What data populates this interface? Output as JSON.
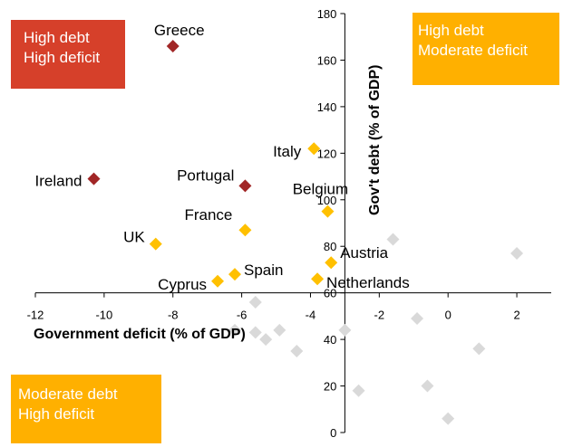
{
  "chart_data": {
    "type": "scatter",
    "xlabel": "Government deficit (% of GDP)",
    "ylabel": "Gov't debt (% of GDP)",
    "xlim": [
      -12,
      3
    ],
    "ylim": [
      0,
      180
    ],
    "x_ticks": [
      -12,
      -10,
      -8,
      -6,
      -4,
      -2,
      0,
      2
    ],
    "y_ticks": [
      0,
      20,
      40,
      60,
      80,
      100,
      120,
      140,
      160,
      180
    ],
    "x_axis_crosses_y_at": 60,
    "y_axis_crosses_x_at": -3,
    "grid": false,
    "colors": {
      "high_debt_high_deficit": "#A12626",
      "high_debt_moderate_deficit": "#FFC000",
      "other": "#D9D9D9"
    },
    "labeled_points": [
      {
        "label": "Greece",
        "x": -8.0,
        "y": 166,
        "group": "high_debt_high_deficit"
      },
      {
        "label": "Ireland",
        "x": -10.3,
        "y": 109,
        "group": "high_debt_high_deficit"
      },
      {
        "label": "Portugal",
        "x": -5.9,
        "y": 106,
        "group": "high_debt_high_deficit"
      },
      {
        "label": "Italy",
        "x": -3.9,
        "y": 122,
        "group": "high_debt_moderate_deficit"
      },
      {
        "label": "Belgium",
        "x": -3.5,
        "y": 95,
        "group": "high_debt_moderate_deficit"
      },
      {
        "label": "France",
        "x": -5.9,
        "y": 87,
        "group": "high_debt_moderate_deficit"
      },
      {
        "label": "UK",
        "x": -8.5,
        "y": 81,
        "group": "high_debt_moderate_deficit"
      },
      {
        "label": "Austria",
        "x": -3.4,
        "y": 73,
        "group": "high_debt_moderate_deficit"
      },
      {
        "label": "Spain",
        "x": -6.2,
        "y": 68,
        "group": "high_debt_moderate_deficit"
      },
      {
        "label": "Cyprus",
        "x": -6.7,
        "y": 65,
        "group": "high_debt_moderate_deficit"
      },
      {
        "label": "Netherlands",
        "x": -3.8,
        "y": 66,
        "group": "high_debt_moderate_deficit"
      }
    ],
    "other_points": [
      {
        "x": -1.6,
        "y": 83
      },
      {
        "x": 2.0,
        "y": 77
      },
      {
        "x": -5.6,
        "y": 56
      },
      {
        "x": -0.9,
        "y": 49
      },
      {
        "x": -6.2,
        "y": 44
      },
      {
        "x": -5.6,
        "y": 43
      },
      {
        "x": -4.9,
        "y": 44
      },
      {
        "x": -5.3,
        "y": 40
      },
      {
        "x": -3.0,
        "y": 44
      },
      {
        "x": -4.4,
        "y": 35
      },
      {
        "x": 0.9,
        "y": 36
      },
      {
        "x": -2.6,
        "y": 18
      },
      {
        "x": -0.6,
        "y": 20
      },
      {
        "x": 0.0,
        "y": 6
      }
    ]
  },
  "quadrants": {
    "high_high": {
      "line1": "High debt",
      "line2": "High deficit"
    },
    "high_moderate": {
      "line1": "High debt",
      "line2": "Moderate deficit"
    },
    "moderate_high": {
      "line1": "Moderate debt",
      "line2": "High deficit"
    }
  }
}
